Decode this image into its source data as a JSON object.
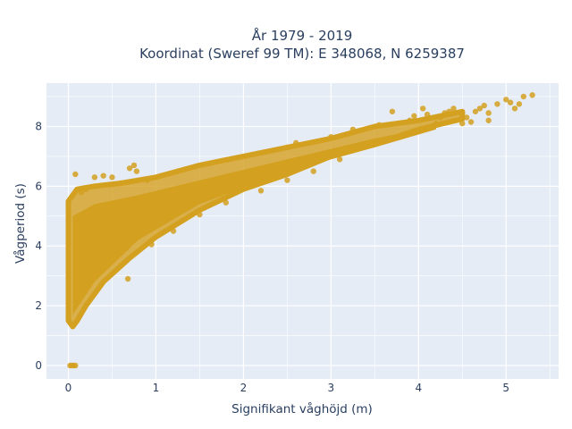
{
  "chart_data": {
    "type": "scatter",
    "title_line1": "År 1979 - 2019",
    "title_line2": "Koordinat (Sweref 99 TM): E 348068, N 6259387",
    "xlabel": "Signifikant våghöjd (m)",
    "ylabel": "Vågperiod (s)",
    "xlim": [
      -0.25,
      5.6
    ],
    "ylim": [
      -0.45,
      9.45
    ],
    "xticks": [
      0,
      1,
      2,
      3,
      4,
      5
    ],
    "yticks": [
      0,
      2,
      4,
      6,
      8
    ],
    "grid": true,
    "marker_color": "#d4a020",
    "plot_bg": "#e5ecf6",
    "grid_color": "#ffffff",
    "points": [
      [
        0.02,
        0
      ],
      [
        0.04,
        0
      ],
      [
        0.06,
        0
      ],
      [
        0.08,
        0
      ],
      [
        0.08,
        6.4
      ],
      [
        0.15,
        5.8
      ],
      [
        0.2,
        5.9
      ],
      [
        0.3,
        6.3
      ],
      [
        0.4,
        6.35
      ],
      [
        0.5,
        6.3
      ],
      [
        0.6,
        6.1
      ],
      [
        0.7,
        6.6
      ],
      [
        0.75,
        6.7
      ],
      [
        0.78,
        6.5
      ],
      [
        0.9,
        6.2
      ],
      [
        0.45,
        3.9
      ],
      [
        0.5,
        3.75
      ],
      [
        0.6,
        3.35
      ],
      [
        0.68,
        2.9
      ],
      [
        0.95,
        4.05
      ],
      [
        1.2,
        4.5
      ],
      [
        1.5,
        5.05
      ],
      [
        1.8,
        5.45
      ],
      [
        2.2,
        5.85
      ],
      [
        2.5,
        6.2
      ],
      [
        2.8,
        6.5
      ],
      [
        3.1,
        6.9
      ],
      [
        2.5,
        7.3
      ],
      [
        2.6,
        7.45
      ],
      [
        3.0,
        7.65
      ],
      [
        3.25,
        7.9
      ],
      [
        3.55,
        8.05
      ],
      [
        3.9,
        8.2
      ],
      [
        4.1,
        8.4
      ],
      [
        4.3,
        8.45
      ],
      [
        4.4,
        8.6
      ],
      [
        4.5,
        8.45
      ],
      [
        4.55,
        8.3
      ],
      [
        4.65,
        8.5
      ],
      [
        4.7,
        8.6
      ],
      [
        4.75,
        8.7
      ],
      [
        4.8,
        8.45
      ],
      [
        4.9,
        8.75
      ],
      [
        5.0,
        8.9
      ],
      [
        5.05,
        8.8
      ],
      [
        5.1,
        8.6
      ],
      [
        5.15,
        8.75
      ],
      [
        5.2,
        9.0
      ],
      [
        5.3,
        9.05
      ],
      [
        4.8,
        8.2
      ],
      [
        4.6,
        8.15
      ],
      [
        4.2,
        8.1
      ],
      [
        4.25,
        8.3
      ],
      [
        4.05,
        8.6
      ],
      [
        4.35,
        8.5
      ],
      [
        3.7,
        8.5
      ],
      [
        3.95,
        8.35
      ],
      [
        4.5,
        8.1
      ]
    ],
    "envelope": {
      "upper": [
        [
          0.0,
          5.5
        ],
        [
          0.1,
          5.9
        ],
        [
          0.3,
          6.0
        ],
        [
          0.6,
          6.1
        ],
        [
          1.0,
          6.3
        ],
        [
          1.5,
          6.7
        ],
        [
          2.0,
          7.0
        ],
        [
          2.5,
          7.3
        ],
        [
          3.0,
          7.6
        ],
        [
          3.5,
          8.0
        ],
        [
          4.0,
          8.2
        ],
        [
          4.5,
          8.5
        ]
      ],
      "lower": [
        [
          4.5,
          8.25
        ],
        [
          4.0,
          7.9
        ],
        [
          3.5,
          7.4
        ],
        [
          3.0,
          7.0
        ],
        [
          2.5,
          6.4
        ],
        [
          2.0,
          5.9
        ],
        [
          1.5,
          5.2
        ],
        [
          1.0,
          4.3
        ],
        [
          0.7,
          3.6
        ],
        [
          0.4,
          2.8
        ],
        [
          0.2,
          2.0
        ],
        [
          0.1,
          1.5
        ],
        [
          0.05,
          1.3
        ],
        [
          0.0,
          1.5
        ]
      ]
    },
    "dense_band": {
      "upper": [
        [
          0.05,
          5.0
        ],
        [
          0.3,
          5.4
        ],
        [
          0.8,
          5.7
        ],
        [
          1.5,
          6.2
        ],
        [
          2.5,
          6.9
        ],
        [
          3.5,
          7.6
        ],
        [
          4.2,
          8.0
        ]
      ],
      "lower": [
        [
          4.2,
          7.9
        ],
        [
          3.5,
          7.3
        ],
        [
          2.5,
          6.5
        ],
        [
          1.5,
          5.4
        ],
        [
          0.8,
          4.2
        ],
        [
          0.3,
          2.8
        ],
        [
          0.05,
          1.7
        ]
      ]
    }
  }
}
